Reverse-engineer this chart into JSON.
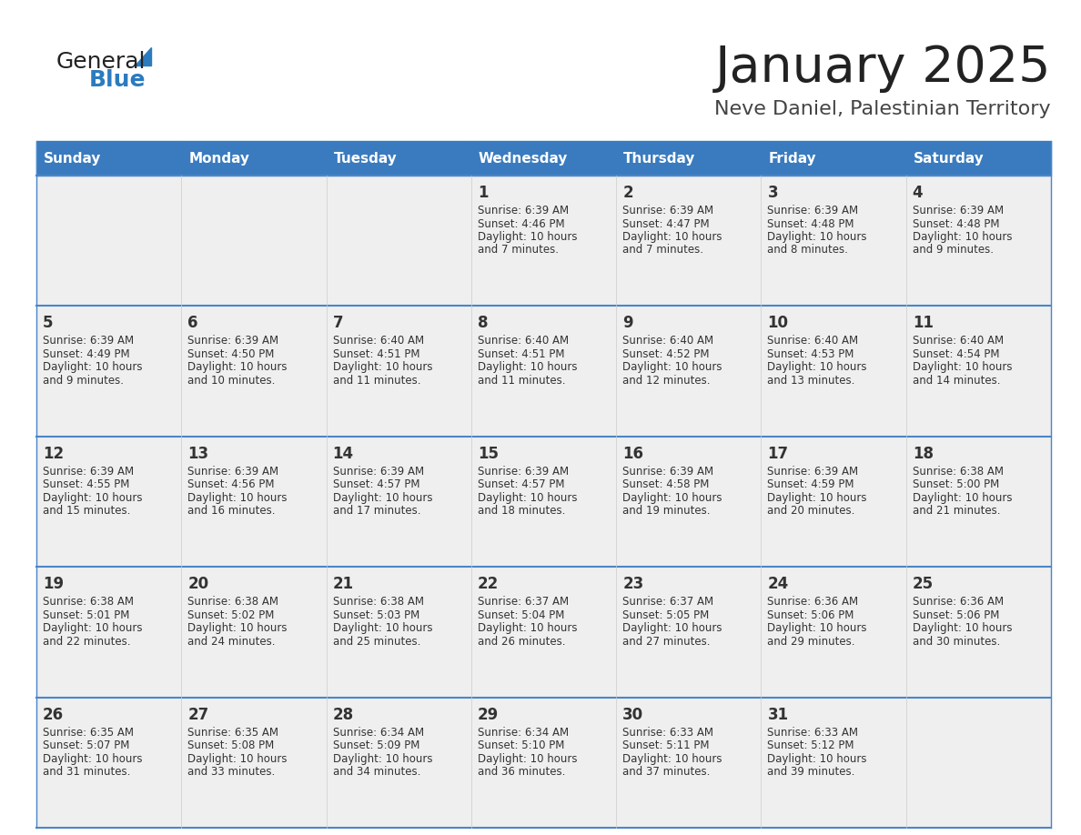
{
  "title": "January 2025",
  "subtitle": "Neve Daniel, Palestinian Territory",
  "days_of_week": [
    "Sunday",
    "Monday",
    "Tuesday",
    "Wednesday",
    "Thursday",
    "Friday",
    "Saturday"
  ],
  "header_bg": "#3a7bbf",
  "header_text": "#ffffff",
  "cell_bg_light": "#efefef",
  "cell_text": "#333333",
  "border_color": "#4a86c8",
  "title_color": "#222222",
  "subtitle_color": "#444444",
  "logo_general_color": "#222222",
  "logo_blue_color": "#2b7bbf",
  "weeks": [
    [
      {
        "day": null
      },
      {
        "day": null
      },
      {
        "day": null
      },
      {
        "day": 1,
        "sunrise": "6:39 AM",
        "sunset": "4:46 PM",
        "daylight": "10 hours and 7 minutes."
      },
      {
        "day": 2,
        "sunrise": "6:39 AM",
        "sunset": "4:47 PM",
        "daylight": "10 hours and 7 minutes."
      },
      {
        "day": 3,
        "sunrise": "6:39 AM",
        "sunset": "4:48 PM",
        "daylight": "10 hours and 8 minutes."
      },
      {
        "day": 4,
        "sunrise": "6:39 AM",
        "sunset": "4:48 PM",
        "daylight": "10 hours and 9 minutes."
      }
    ],
    [
      {
        "day": 5,
        "sunrise": "6:39 AM",
        "sunset": "4:49 PM",
        "daylight": "10 hours and 9 minutes."
      },
      {
        "day": 6,
        "sunrise": "6:39 AM",
        "sunset": "4:50 PM",
        "daylight": "10 hours and 10 minutes."
      },
      {
        "day": 7,
        "sunrise": "6:40 AM",
        "sunset": "4:51 PM",
        "daylight": "10 hours and 11 minutes."
      },
      {
        "day": 8,
        "sunrise": "6:40 AM",
        "sunset": "4:51 PM",
        "daylight": "10 hours and 11 minutes."
      },
      {
        "day": 9,
        "sunrise": "6:40 AM",
        "sunset": "4:52 PM",
        "daylight": "10 hours and 12 minutes."
      },
      {
        "day": 10,
        "sunrise": "6:40 AM",
        "sunset": "4:53 PM",
        "daylight": "10 hours and 13 minutes."
      },
      {
        "day": 11,
        "sunrise": "6:40 AM",
        "sunset": "4:54 PM",
        "daylight": "10 hours and 14 minutes."
      }
    ],
    [
      {
        "day": 12,
        "sunrise": "6:39 AM",
        "sunset": "4:55 PM",
        "daylight": "10 hours and 15 minutes."
      },
      {
        "day": 13,
        "sunrise": "6:39 AM",
        "sunset": "4:56 PM",
        "daylight": "10 hours and 16 minutes."
      },
      {
        "day": 14,
        "sunrise": "6:39 AM",
        "sunset": "4:57 PM",
        "daylight": "10 hours and 17 minutes."
      },
      {
        "day": 15,
        "sunrise": "6:39 AM",
        "sunset": "4:57 PM",
        "daylight": "10 hours and 18 minutes."
      },
      {
        "day": 16,
        "sunrise": "6:39 AM",
        "sunset": "4:58 PM",
        "daylight": "10 hours and 19 minutes."
      },
      {
        "day": 17,
        "sunrise": "6:39 AM",
        "sunset": "4:59 PM",
        "daylight": "10 hours and 20 minutes."
      },
      {
        "day": 18,
        "sunrise": "6:38 AM",
        "sunset": "5:00 PM",
        "daylight": "10 hours and 21 minutes."
      }
    ],
    [
      {
        "day": 19,
        "sunrise": "6:38 AM",
        "sunset": "5:01 PM",
        "daylight": "10 hours and 22 minutes."
      },
      {
        "day": 20,
        "sunrise": "6:38 AM",
        "sunset": "5:02 PM",
        "daylight": "10 hours and 24 minutes."
      },
      {
        "day": 21,
        "sunrise": "6:38 AM",
        "sunset": "5:03 PM",
        "daylight": "10 hours and 25 minutes."
      },
      {
        "day": 22,
        "sunrise": "6:37 AM",
        "sunset": "5:04 PM",
        "daylight": "10 hours and 26 minutes."
      },
      {
        "day": 23,
        "sunrise": "6:37 AM",
        "sunset": "5:05 PM",
        "daylight": "10 hours and 27 minutes."
      },
      {
        "day": 24,
        "sunrise": "6:36 AM",
        "sunset": "5:06 PM",
        "daylight": "10 hours and 29 minutes."
      },
      {
        "day": 25,
        "sunrise": "6:36 AM",
        "sunset": "5:06 PM",
        "daylight": "10 hours and 30 minutes."
      }
    ],
    [
      {
        "day": 26,
        "sunrise": "6:35 AM",
        "sunset": "5:07 PM",
        "daylight": "10 hours and 31 minutes."
      },
      {
        "day": 27,
        "sunrise": "6:35 AM",
        "sunset": "5:08 PM",
        "daylight": "10 hours and 33 minutes."
      },
      {
        "day": 28,
        "sunrise": "6:34 AM",
        "sunset": "5:09 PM",
        "daylight": "10 hours and 34 minutes."
      },
      {
        "day": 29,
        "sunrise": "6:34 AM",
        "sunset": "5:10 PM",
        "daylight": "10 hours and 36 minutes."
      },
      {
        "day": 30,
        "sunrise": "6:33 AM",
        "sunset": "5:11 PM",
        "daylight": "10 hours and 37 minutes."
      },
      {
        "day": 31,
        "sunrise": "6:33 AM",
        "sunset": "5:12 PM",
        "daylight": "10 hours and 39 minutes."
      },
      {
        "day": null
      }
    ]
  ]
}
